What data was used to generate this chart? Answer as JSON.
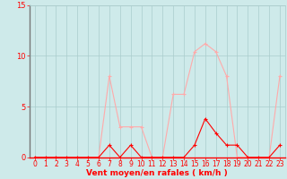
{
  "x": [
    0,
    1,
    2,
    3,
    4,
    5,
    6,
    7,
    8,
    9,
    10,
    11,
    12,
    13,
    14,
    15,
    16,
    17,
    18,
    19,
    20,
    21,
    22,
    23
  ],
  "y_mean": [
    0,
    0,
    0,
    0,
    0,
    0,
    0,
    1.2,
    0,
    1.2,
    0,
    0,
    0,
    0,
    0,
    1.2,
    3.8,
    2.4,
    1.2,
    1.2,
    0,
    0,
    0,
    1.2
  ],
  "y_gust": [
    0,
    0,
    0,
    0,
    0,
    0,
    0,
    8,
    3,
    3,
    3,
    0,
    0,
    6.2,
    6.2,
    10.4,
    11.2,
    10.4,
    8,
    0,
    0,
    0,
    0,
    8
  ],
  "xlim_min": -0.5,
  "xlim_max": 23.5,
  "ylim": [
    0,
    15
  ],
  "yticks": [
    0,
    5,
    10,
    15
  ],
  "xticks": [
    0,
    1,
    2,
    3,
    4,
    5,
    6,
    7,
    8,
    9,
    10,
    11,
    12,
    13,
    14,
    15,
    16,
    17,
    18,
    19,
    20,
    21,
    22,
    23
  ],
  "xlabel": "Vent moyen/en rafales ( km/h )",
  "line_color_mean": "#ff0000",
  "line_color_gust": "#ffaaaa",
  "bg_color": "#ceeaea",
  "grid_color": "#aacccc",
  "label_color": "#ff0000",
  "marker_size": 2.0,
  "line_width": 0.8,
  "xlabel_fontsize": 6.5,
  "tick_fontsize": 5.5
}
